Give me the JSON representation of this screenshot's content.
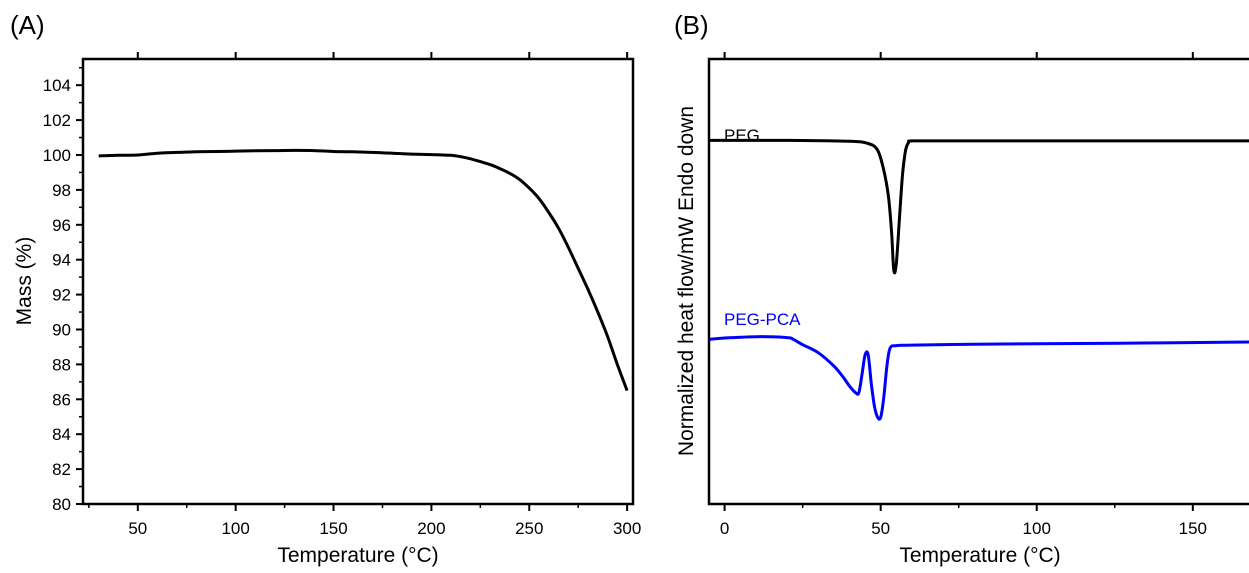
{
  "chart_data": [
    {
      "type": "line",
      "panel_label": "(A)",
      "xlabel": "Temperature (°C)",
      "ylabel": "Mass (%)",
      "xlim": [
        22,
        303
      ],
      "ylim": [
        80,
        105.5
      ],
      "xticks": [
        50,
        100,
        150,
        200,
        250,
        300
      ],
      "yticks": [
        80,
        82,
        84,
        86,
        88,
        90,
        92,
        94,
        96,
        98,
        100,
        102,
        104
      ],
      "series": [
        {
          "color": "#000000",
          "x": [
            30,
            40,
            50,
            60,
            70,
            80,
            90,
            100,
            110,
            120,
            130,
            140,
            150,
            160,
            170,
            180,
            190,
            200,
            210,
            215,
            220,
            225,
            230,
            235,
            240,
            245,
            250,
            255,
            260,
            265,
            270,
            275,
            280,
            285,
            290,
            295,
            300
          ],
          "y": [
            99.95,
            99.98,
            100.0,
            100.1,
            100.15,
            100.18,
            100.2,
            100.22,
            100.24,
            100.25,
            100.26,
            100.25,
            100.2,
            100.18,
            100.15,
            100.1,
            100.05,
            100.02,
            99.98,
            99.9,
            99.78,
            99.62,
            99.45,
            99.22,
            98.95,
            98.6,
            98.1,
            97.5,
            96.7,
            95.8,
            94.7,
            93.5,
            92.3,
            91.0,
            89.6,
            88.0,
            86.5
          ]
        }
      ]
    },
    {
      "type": "line",
      "panel_label": "(B)",
      "xlabel": "Temperature (°C)",
      "ylabel": "Normalized heat flow/mW Endo down",
      "xlim": [
        -5,
        168
      ],
      "ylim": [
        0,
        100
      ],
      "xticks": [
        0,
        50,
        100,
        150
      ],
      "yticks": [],
      "series": [
        {
          "name": "PEG",
          "color": "#000000",
          "x": [
            -5,
            20,
            40,
            46,
            49,
            51,
            52.5,
            53.5,
            54.2,
            55,
            56,
            57,
            58,
            59,
            60,
            70,
            100,
            140,
            168
          ],
          "y": [
            81.7,
            81.7,
            81.5,
            81.0,
            79.5,
            75.0,
            69.0,
            61.0,
            52.5,
            54.0,
            64.0,
            74.0,
            79.5,
            81.3,
            81.6,
            81.6,
            81.6,
            81.6,
            81.6
          ]
        },
        {
          "name": "PEG-PCA",
          "color": "#0000ff",
          "x": [
            -5,
            0,
            10,
            20,
            22,
            25,
            30,
            35,
            38,
            40,
            42,
            43,
            44,
            45,
            46,
            47,
            48,
            49,
            50,
            51,
            52,
            53,
            55,
            60,
            80,
            100,
            120,
            140,
            168
          ],
          "y": [
            37.0,
            37.3,
            37.6,
            37.4,
            37.0,
            35.8,
            34.0,
            31.0,
            28.5,
            26.5,
            25.0,
            25.0,
            29.0,
            33.5,
            33.5,
            27.0,
            22.0,
            19.5,
            19.5,
            24.0,
            31.0,
            35.0,
            35.6,
            35.7,
            35.9,
            36.0,
            36.1,
            36.2,
            36.4
          ]
        }
      ]
    }
  ]
}
